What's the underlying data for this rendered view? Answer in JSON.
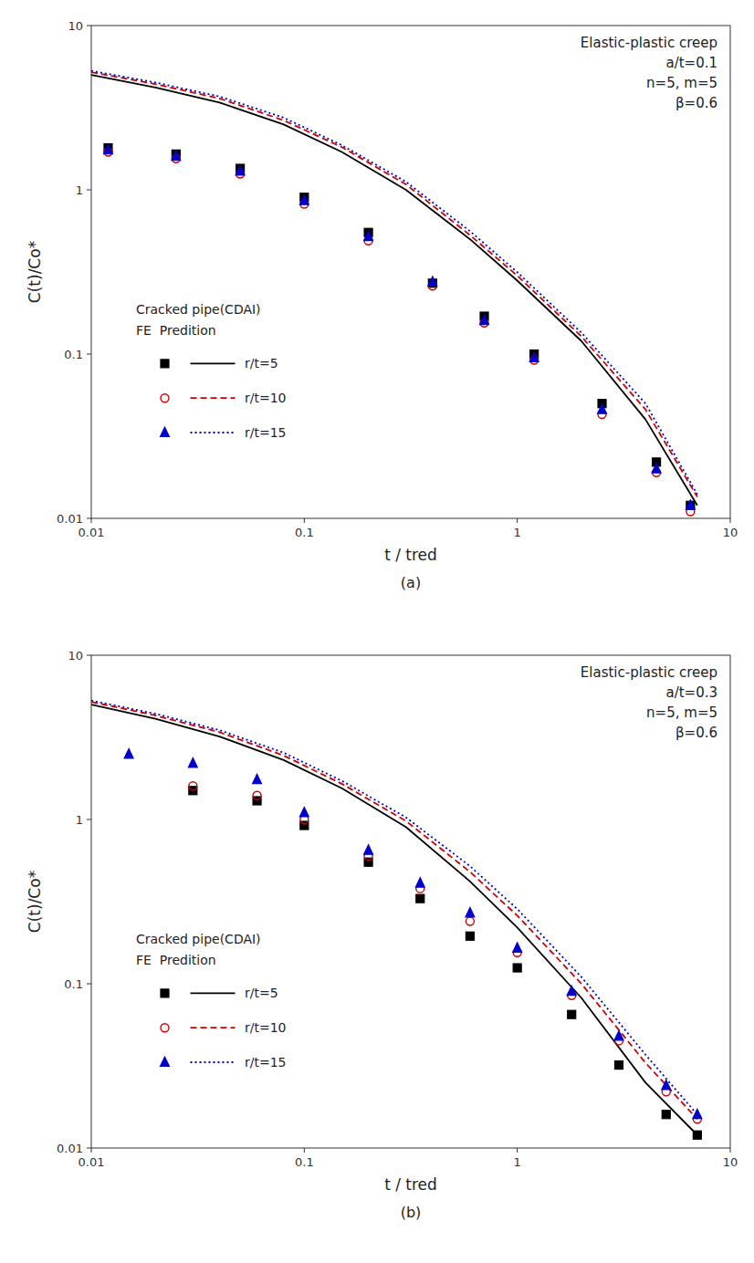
{
  "chart_data": [
    {
      "type": "line",
      "title": "(a)",
      "x_label": "t / tred",
      "y_label": "C(t)/Co*",
      "annotations": [
        "Elastic-plastic creep\na/t=0.1\nn=5, m=5\nβ=0.6",
        "Cracked pipe(CDAI)\nFE  Predition"
      ],
      "log": true,
      "grid": false,
      "legend": "lower left",
      "xlim": [
        0.01,
        10
      ],
      "ylim": [
        0.01,
        10
      ],
      "xticks": [
        0.01,
        0.1,
        1,
        10
      ],
      "yticks": [
        0.01,
        0.1,
        1,
        10
      ],
      "series": [
        {
          "name": "r/t=5",
          "type": "line",
          "color": "#000000",
          "line_style": "solid",
          "x": [
            0.01,
            0.02,
            0.04,
            0.08,
            0.15,
            0.3,
            0.6,
            1.0,
            2.0,
            4.0,
            7.0
          ],
          "values": [
            5.0,
            4.2,
            3.4,
            2.5,
            1.7,
            1.0,
            0.5,
            0.28,
            0.12,
            0.04,
            0.012
          ]
        },
        {
          "name": "r/t=10",
          "type": "line",
          "color": "#cc0000",
          "line_style": "dashed",
          "x": [
            0.01,
            0.02,
            0.04,
            0.08,
            0.15,
            0.3,
            0.6,
            1.0,
            2.0,
            4.0,
            7.0
          ],
          "values": [
            5.2,
            4.4,
            3.6,
            2.65,
            1.82,
            1.08,
            0.53,
            0.3,
            0.128,
            0.046,
            0.0135
          ]
        },
        {
          "name": "r/t=15",
          "type": "line",
          "color": "#0000cc",
          "line_style": "dotted",
          "x": [
            0.01,
            0.02,
            0.04,
            0.08,
            0.15,
            0.3,
            0.6,
            1.0,
            2.0,
            4.0,
            7.0
          ],
          "values": [
            5.3,
            4.5,
            3.7,
            2.75,
            1.87,
            1.12,
            0.56,
            0.315,
            0.135,
            0.05,
            0.014
          ]
        },
        {
          "type": "scatter",
          "color": "#000000",
          "marker": "square",
          "x": [
            0.012,
            0.025,
            0.05,
            0.1,
            0.2,
            0.4,
            0.7,
            1.2,
            2.5,
            4.5,
            6.5
          ],
          "values": [
            1.8,
            1.65,
            1.35,
            0.9,
            0.55,
            0.27,
            0.17,
            0.1,
            0.05,
            0.022,
            0.012
          ]
        },
        {
          "type": "scatter",
          "color": "#cc0000",
          "marker": "circle-open",
          "x": [
            0.012,
            0.025,
            0.05,
            0.1,
            0.2,
            0.4,
            0.7,
            1.2,
            2.5,
            4.5,
            6.5
          ],
          "values": [
            1.7,
            1.55,
            1.25,
            0.82,
            0.49,
            0.26,
            0.155,
            0.092,
            0.043,
            0.019,
            0.011
          ]
        },
        {
          "type": "scatter",
          "color": "#0000cc",
          "marker": "triangle",
          "x": [
            0.012,
            0.025,
            0.05,
            0.1,
            0.2,
            0.4,
            0.7,
            1.2,
            2.5,
            4.5,
            6.5
          ],
          "values": [
            1.75,
            1.6,
            1.3,
            0.86,
            0.52,
            0.275,
            0.16,
            0.095,
            0.046,
            0.02,
            0.012
          ]
        }
      ]
    },
    {
      "type": "line",
      "title": "(b)",
      "x_label": "t / tred",
      "y_label": "C(t)/Co*",
      "annotations": [
        "Elastic-plastic creep\na/t=0.3\nn=5, m=5\nβ=0.6",
        "Cracked pipe(CDAI)\nFE  Predition"
      ],
      "log": true,
      "grid": false,
      "legend": "lower left",
      "xlim": [
        0.01,
        10
      ],
      "ylim": [
        0.01,
        10
      ],
      "xticks": [
        0.01,
        0.1,
        1,
        10
      ],
      "yticks": [
        0.01,
        0.1,
        1,
        10
      ],
      "series": [
        {
          "name": "r/t=5",
          "type": "line",
          "color": "#000000",
          "line_style": "solid",
          "x": [
            0.01,
            0.02,
            0.04,
            0.08,
            0.15,
            0.3,
            0.6,
            1.0,
            2.0,
            4.0,
            7.0
          ],
          "values": [
            5.0,
            4.1,
            3.2,
            2.3,
            1.55,
            0.9,
            0.42,
            0.22,
            0.082,
            0.025,
            0.012
          ]
        },
        {
          "name": "r/t=10",
          "type": "line",
          "color": "#cc0000",
          "line_style": "dashed",
          "x": [
            0.01,
            0.02,
            0.04,
            0.08,
            0.15,
            0.3,
            0.6,
            1.0,
            2.0,
            4.0,
            7.0
          ],
          "values": [
            5.2,
            4.3,
            3.4,
            2.45,
            1.65,
            0.98,
            0.48,
            0.26,
            0.1,
            0.033,
            0.015
          ]
        },
        {
          "name": "r/t=15",
          "type": "line",
          "color": "#0000cc",
          "line_style": "dotted",
          "x": [
            0.01,
            0.02,
            0.04,
            0.08,
            0.15,
            0.3,
            0.6,
            1.0,
            2.0,
            4.0,
            7.0
          ],
          "values": [
            5.3,
            4.4,
            3.5,
            2.55,
            1.72,
            1.03,
            0.52,
            0.285,
            0.11,
            0.037,
            0.016
          ]
        },
        {
          "type": "scatter",
          "color": "#000000",
          "marker": "square",
          "x": [
            0.03,
            0.06,
            0.1,
            0.2,
            0.35,
            0.6,
            1.0,
            1.8,
            3.0,
            5.0,
            7.0
          ],
          "values": [
            1.5,
            1.3,
            0.92,
            0.55,
            0.33,
            0.195,
            0.125,
            0.065,
            0.032,
            0.016,
            0.012
          ]
        },
        {
          "type": "scatter",
          "color": "#cc0000",
          "marker": "circle-open",
          "x": [
            0.03,
            0.06,
            0.1,
            0.2,
            0.35,
            0.6,
            1.0,
            1.8,
            3.0,
            5.0,
            7.0
          ],
          "values": [
            1.6,
            1.4,
            1.0,
            0.6,
            0.38,
            0.24,
            0.155,
            0.085,
            0.045,
            0.022,
            0.015
          ]
        },
        {
          "type": "scatter",
          "color": "#0000cc",
          "marker": "triangle",
          "x": [
            0.015,
            0.03,
            0.06,
            0.1,
            0.2,
            0.35,
            0.6,
            1.0,
            1.8,
            3.0,
            5.0,
            7.0
          ],
          "values": [
            2.5,
            2.2,
            1.75,
            1.1,
            0.65,
            0.41,
            0.27,
            0.165,
            0.09,
            0.048,
            0.024,
            0.016
          ]
        }
      ]
    }
  ]
}
